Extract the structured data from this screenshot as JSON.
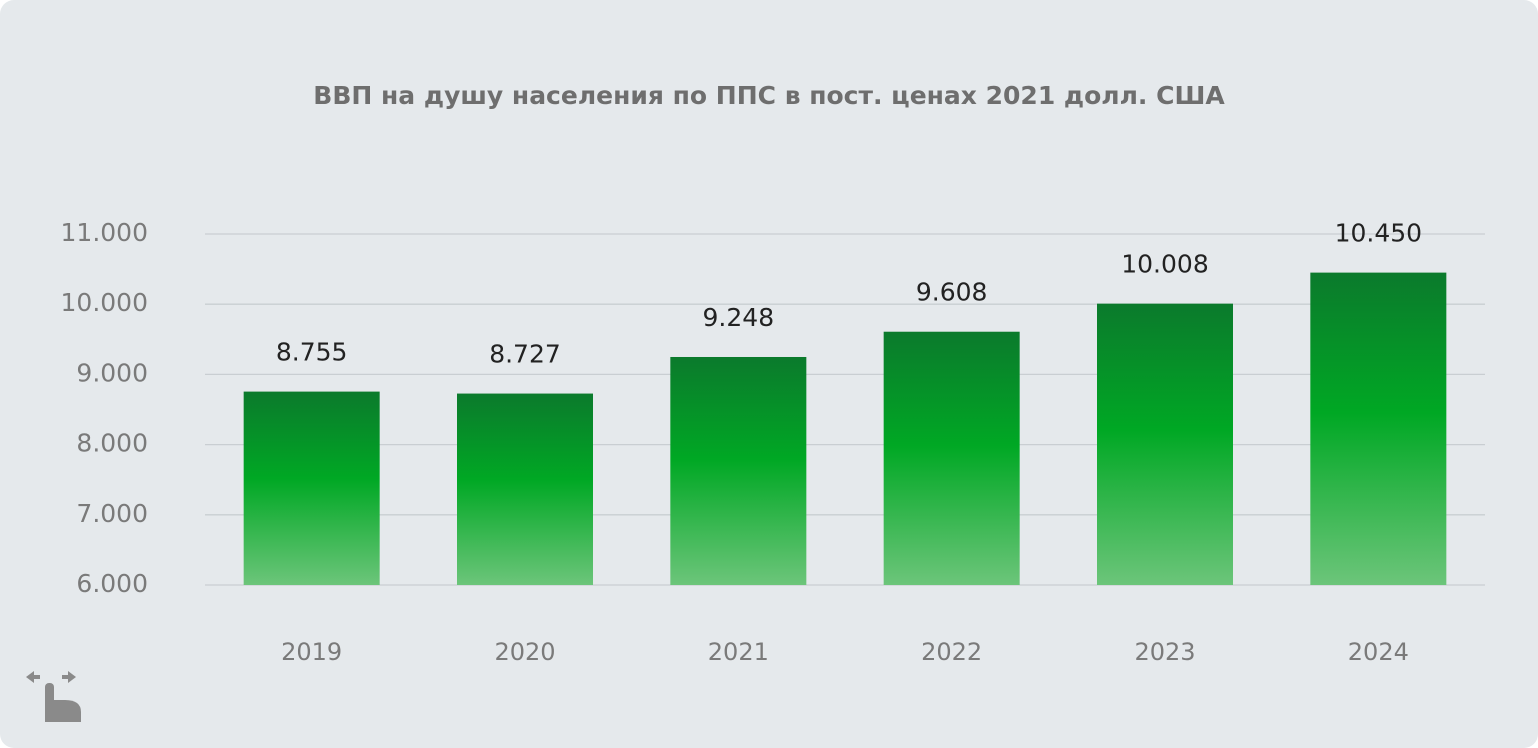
{
  "chart_data": {
    "type": "bar",
    "title": "ВВП на душу населения по ППС в пост. ценах 2021 долл. США",
    "categories": [
      "2019",
      "2020",
      "2021",
      "2022",
      "2023",
      "2024"
    ],
    "values": [
      8755,
      8727,
      9248,
      9608,
      10008,
      10450
    ],
    "value_labels": [
      "8.755",
      "8.727",
      "9.248",
      "9.608",
      "10.008",
      "10.450"
    ],
    "ylim": [
      6000,
      11000
    ],
    "yticks": [
      {
        "value": 6000,
        "label": "6.000"
      },
      {
        "value": 7000,
        "label": "7.000"
      },
      {
        "value": 8000,
        "label": "8.000"
      },
      {
        "value": 9000,
        "label": "9.000"
      },
      {
        "value": 10000,
        "label": "10.000"
      },
      {
        "value": 11000,
        "label": "11.000"
      }
    ],
    "grid": true
  }
}
